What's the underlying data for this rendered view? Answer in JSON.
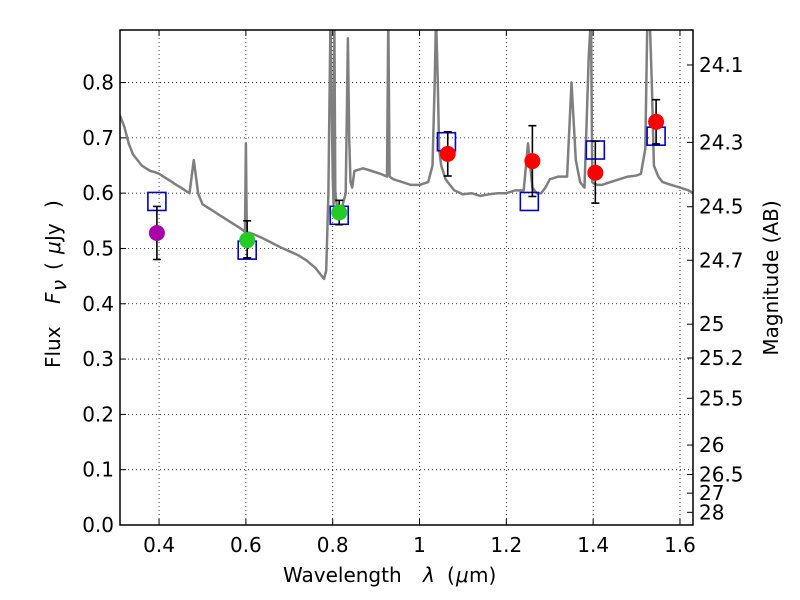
{
  "chart_data": {
    "type": "scatter",
    "xlabel_text": "Wavelength",
    "xlabel_sym": "λ",
    "xlabel_unit_open": "(",
    "xlabel_unit_mu": "μ",
    "xlabel_unit_rest": "m)",
    "ylabel_text": "Flux",
    "ylabel_sym": "F",
    "ylabel_sub": "ν",
    "ylabel_unit_open": "(",
    "ylabel_unit_mu": "μ",
    "ylabel_unit_rest": "Jy",
    "ylabel_unit_close": ")",
    "y2label": "Magnitude (AB)",
    "xlim": [
      0.31,
      1.63
    ],
    "ylim": [
      0.0,
      0.895
    ],
    "grid": true,
    "xticks": [
      0.4,
      0.6,
      0.8,
      1.0,
      1.2,
      1.4,
      1.6
    ],
    "xtick_labels": [
      "0.4",
      "0.6",
      "0.8",
      "1",
      "1.2",
      "1.4",
      "1.6"
    ],
    "yticks": [
      0.0,
      0.1,
      0.2,
      0.3,
      0.4,
      0.5,
      0.6,
      0.7,
      0.8
    ],
    "ytick_labels": [
      "0.0",
      "0.1",
      "0.2",
      "0.3",
      "0.4",
      "0.5",
      "0.6",
      "0.7",
      "0.8"
    ],
    "mag_ticks": [
      24.1,
      24.3,
      24.5,
      24.7,
      25,
      25.2,
      25.5,
      26,
      26.5,
      27,
      28
    ],
    "mag_tick_labels": [
      "24.1",
      "24.3",
      "24.5",
      "24.7",
      "25",
      "25.2",
      "25.5",
      "26",
      "26.5",
      "27",
      "28"
    ],
    "observed": [
      {
        "x": 0.395,
        "y": 0.528,
        "yerr_low": 0.048,
        "yerr_high": 0.048,
        "color": "#aa00aa"
      },
      {
        "x": 0.603,
        "y": 0.515,
        "yerr_low": 0.032,
        "yerr_high": 0.035,
        "color": "#22cc22"
      },
      {
        "x": 0.815,
        "y": 0.565,
        "yerr_low": 0.022,
        "yerr_high": 0.022,
        "color": "#22cc22"
      },
      {
        "x": 1.065,
        "y": 0.671,
        "yerr_low": 0.04,
        "yerr_high": 0.04,
        "color": "#ff0000"
      },
      {
        "x": 1.26,
        "y": 0.658,
        "yerr_low": 0.064,
        "yerr_high": 0.064,
        "color": "#ff0000"
      },
      {
        "x": 1.405,
        "y": 0.637,
        "yerr_low": 0.055,
        "yerr_high": 0.057,
        "color": "#ff0000"
      },
      {
        "x": 1.545,
        "y": 0.729,
        "yerr_low": 0.04,
        "yerr_high": 0.04,
        "color": "#ff0000"
      }
    ],
    "model_points": [
      {
        "x": 0.395,
        "y": 0.585
      },
      {
        "x": 0.603,
        "y": 0.497
      },
      {
        "x": 0.815,
        "y": 0.56
      },
      {
        "x": 1.062,
        "y": 0.693
      },
      {
        "x": 1.253,
        "y": 0.585
      },
      {
        "x": 1.405,
        "y": 0.678
      },
      {
        "x": 1.545,
        "y": 0.703
      }
    ],
    "spectrum": {
      "x": [
        0.31,
        0.32,
        0.33,
        0.34,
        0.35,
        0.36,
        0.37,
        0.38,
        0.39,
        0.4,
        0.41,
        0.42,
        0.43,
        0.44,
        0.45,
        0.46,
        0.47,
        0.48,
        0.49,
        0.5,
        0.51,
        0.52,
        0.53,
        0.54,
        0.55,
        0.56,
        0.57,
        0.58,
        0.59,
        0.598,
        0.6,
        0.602,
        0.61,
        0.62,
        0.64,
        0.66,
        0.68,
        0.7,
        0.72,
        0.74,
        0.76,
        0.78,
        0.785,
        0.79,
        0.795,
        0.8,
        0.802,
        0.804,
        0.806,
        0.81,
        0.82,
        0.83,
        0.835,
        0.838,
        0.841,
        0.845,
        0.85,
        0.87,
        0.89,
        0.91,
        0.925,
        0.928,
        0.931,
        0.94,
        0.96,
        0.98,
        1.0,
        1.02,
        1.03,
        1.035,
        1.038,
        1.042,
        1.045,
        1.05,
        1.06,
        1.065,
        1.07,
        1.08,
        1.1,
        1.12,
        1.14,
        1.16,
        1.18,
        1.2,
        1.22,
        1.24,
        1.25,
        1.26,
        1.27,
        1.28,
        1.29,
        1.3,
        1.32,
        1.34,
        1.35,
        1.36,
        1.37,
        1.38,
        1.39,
        1.395,
        1.398,
        1.4,
        1.41,
        1.42,
        1.44,
        1.46,
        1.48,
        1.5,
        1.51,
        1.52,
        1.525,
        1.53,
        1.535,
        1.54,
        1.55,
        1.56,
        1.58,
        1.6,
        1.62,
        1.63
      ],
      "y": [
        0.74,
        0.72,
        0.69,
        0.67,
        0.66,
        0.65,
        0.645,
        0.64,
        0.638,
        0.635,
        0.63,
        0.625,
        0.62,
        0.615,
        0.61,
        0.605,
        0.6,
        0.66,
        0.6,
        0.58,
        0.575,
        0.57,
        0.565,
        0.56,
        0.555,
        0.55,
        0.545,
        0.54,
        0.535,
        0.53,
        0.69,
        0.53,
        0.528,
        0.525,
        0.518,
        0.51,
        0.502,
        0.495,
        0.488,
        0.478,
        0.465,
        0.445,
        0.46,
        0.6,
        0.92,
        0.63,
        0.58,
        0.9,
        0.6,
        0.575,
        0.57,
        0.6,
        0.88,
        0.7,
        0.62,
        0.61,
        0.64,
        0.645,
        0.64,
        0.635,
        0.63,
        0.92,
        0.63,
        0.625,
        0.62,
        0.615,
        0.615,
        0.62,
        0.65,
        0.8,
        0.92,
        0.8,
        0.68,
        0.65,
        0.625,
        0.62,
        0.615,
        0.605,
        0.598,
        0.6,
        0.595,
        0.598,
        0.6,
        0.6,
        0.605,
        0.605,
        0.69,
        0.61,
        0.6,
        0.6,
        0.61,
        0.625,
        0.63,
        0.63,
        0.8,
        0.66,
        0.62,
        0.61,
        0.85,
        0.92,
        0.62,
        0.618,
        0.615,
        0.615,
        0.62,
        0.625,
        0.63,
        0.632,
        0.635,
        0.68,
        0.92,
        0.92,
        0.8,
        0.65,
        0.63,
        0.62,
        0.615,
        0.61,
        0.605,
        0.6
      ]
    }
  }
}
